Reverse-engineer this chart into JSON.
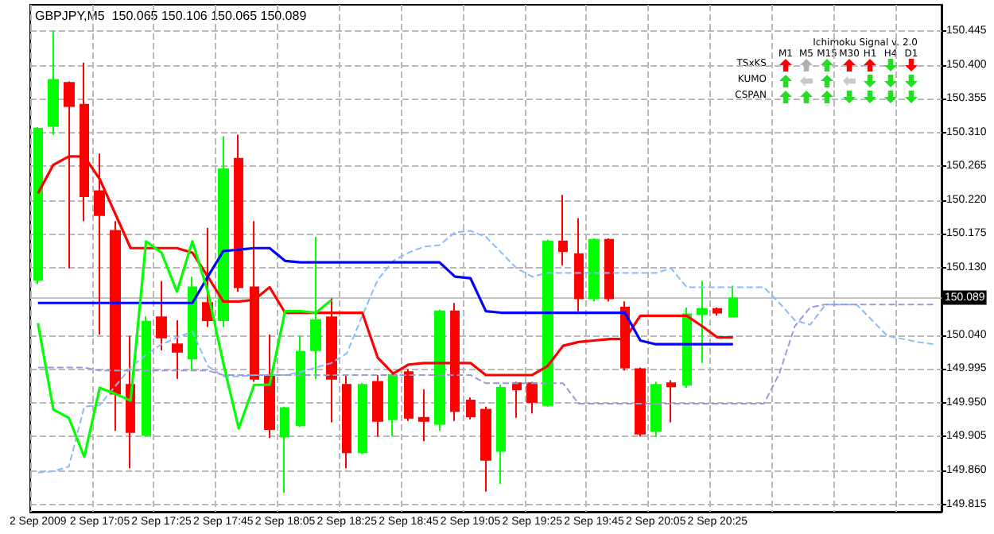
{
  "chart_data": {
    "type": "candlestick",
    "title": "GBPJPY,M5  150.065 150.106 150.065 150.089",
    "categories": [
      "2 Sep 2009",
      null,
      null,
      null,
      "2 Sep 17:05",
      null,
      null,
      null,
      "2 Sep 17:25",
      null,
      null,
      null,
      "2 Sep 17:45",
      null,
      null,
      null,
      "2 Sep 18:05",
      null,
      null,
      null,
      "2 Sep 18:25",
      null,
      null,
      null,
      "2 Sep 18:45",
      null,
      null,
      null,
      "2 Sep 19:05",
      null,
      null,
      null,
      "2 Sep 19:25",
      null,
      null,
      null,
      "2 Sep 19:45",
      null,
      null,
      null,
      "2 Sep 20:05",
      null,
      null,
      null,
      "2 Sep 20:25",
      null,
      null,
      null,
      null,
      null,
      null,
      null,
      null,
      null,
      null,
      null,
      null,
      null,
      null
    ],
    "series": [
      {
        "type": "line",
        "color": "#88bbff",
        "line_style": "dashed",
        "values": [
          149.857,
          149.859,
          149.865,
          149.945,
          149.947,
          149.972,
          149.997,
          150.014,
          150.028,
          150.037,
          150.045,
          149.999,
          149.985,
          149.985,
          149.987,
          149.987,
          149.987,
          149.991,
          149.997,
          150.003,
          150.016,
          150.066,
          150.114,
          150.139,
          150.15,
          150.158,
          150.16,
          150.177,
          150.179,
          150.171,
          150.15,
          150.129,
          150.118,
          150.123,
          150.123,
          150.123,
          150.123,
          150.123,
          150.123,
          150.123,
          150.123,
          150.129,
          150.104,
          150.104,
          150.104,
          150.104,
          150.104,
          150.104,
          150.083,
          150.06,
          150.054,
          150.081,
          150.081,
          150.081,
          150.06,
          150.039,
          150.035,
          150.031,
          150.028
        ]
      },
      {
        "type": "line",
        "color": "#9999dd",
        "line_style": "dashed",
        "values": [
          149.997,
          149.997,
          149.997,
          149.997,
          149.993,
          149.993,
          149.993,
          149.993,
          149.993,
          149.993,
          149.993,
          149.993,
          149.987,
          149.987,
          149.987,
          149.987,
          149.987,
          149.987,
          149.987,
          149.987,
          149.987,
          149.987,
          149.987,
          149.987,
          149.987,
          149.987,
          149.987,
          149.987,
          149.987,
          149.976,
          149.976,
          149.976,
          149.976,
          149.976,
          149.976,
          149.949,
          149.949,
          149.949,
          149.949,
          149.949,
          149.949,
          149.949,
          149.949,
          149.949,
          149.949,
          149.949,
          149.949,
          149.949,
          149.989,
          150.052,
          150.077,
          150.081,
          150.081,
          150.081,
          150.081,
          150.081,
          150.081,
          150.081,
          150.081
        ]
      },
      {
        "type": "line",
        "color": "#ff0000",
        "line_style": "solid",
        "values": [
          150.229,
          150.267,
          150.278,
          150.278,
          150.248,
          150.202,
          150.156,
          150.156,
          150.156,
          150.156,
          150.15,
          150.118,
          150.085,
          150.085,
          150.087,
          150.104,
          150.07,
          150.07,
          150.07,
          150.07,
          150.07,
          150.07,
          150.01,
          149.989,
          150.001,
          150.003,
          150.003,
          150.003,
          150.003,
          149.987,
          149.987,
          149.987,
          149.987,
          149.999,
          150.026,
          150.031,
          150.033,
          150.035,
          150.035,
          150.066,
          150.066,
          150.066,
          150.066,
          150.052,
          150.037,
          150.037,
          null,
          null,
          null,
          null,
          null,
          null,
          null,
          null,
          null,
          null,
          null,
          null,
          null
        ]
      },
      {
        "type": "line",
        "color": "#0000ff",
        "line_style": "solid",
        "values": [
          150.083,
          150.083,
          150.083,
          150.083,
          150.083,
          150.083,
          150.083,
          150.083,
          150.083,
          150.083,
          150.083,
          150.118,
          150.152,
          150.154,
          150.156,
          150.156,
          150.139,
          150.137,
          150.137,
          150.137,
          150.137,
          150.137,
          150.137,
          150.137,
          150.137,
          150.137,
          150.137,
          150.118,
          150.116,
          150.072,
          150.07,
          150.07,
          150.07,
          150.07,
          150.07,
          150.07,
          150.07,
          150.07,
          150.07,
          150.033,
          150.028,
          150.028,
          150.028,
          150.028,
          150.028,
          150.028,
          null,
          null,
          null,
          null,
          null,
          null,
          null,
          null,
          null,
          null,
          null,
          null,
          null
        ]
      },
      {
        "type": "line",
        "color": "#00ff00",
        "line_style": "solid",
        "values": [
          150.056,
          149.941,
          149.93,
          149.878,
          149.97,
          149.962,
          149.953,
          150.165,
          150.15,
          150.098,
          150.165,
          150.098,
          150.003,
          149.916,
          149.974,
          149.974,
          150.072,
          150.072,
          150.07,
          150.087,
          null,
          null,
          null,
          null,
          null,
          null,
          null,
          null,
          null,
          null,
          null,
          null,
          null,
          null,
          null,
          null,
          null,
          null,
          null,
          null,
          null,
          null,
          null,
          null,
          null,
          null,
          null,
          null,
          null,
          null,
          null,
          null,
          null,
          null,
          null,
          null,
          null,
          null,
          null
        ]
      },
      {
        "colors": [
          "#00ff00",
          "#00ff00",
          "#ff0000",
          "#ff0000",
          "#ff0000",
          "#ff0000",
          "#ff0000",
          "#00ff00",
          "#ff0000",
          "#ff0000",
          "#00ff00",
          "#ff0000",
          "#00ff00",
          "#ff0000",
          "#ff0000",
          "#ff0000",
          "#00ff00",
          "#00ff00",
          "#00ff00",
          "#ff0000",
          "#ff0000",
          "#00ff00",
          "#ff0000",
          "#00ff00",
          "#ff0000",
          "#ff0000",
          "#00ff00",
          "#ff0000",
          "#ff0000",
          "#ff0000",
          "#00ff00",
          "#ff0000",
          "#ff0000",
          "#00ff00",
          "#ff0000",
          "#ff0000",
          "#00ff00",
          "#ff0000",
          "#ff0000",
          "#ff0000",
          "#00ff00",
          "#ff0000",
          "#00ff00",
          "#00ff00",
          "#ff0000",
          "#00ff00",
          null,
          null,
          null,
          null,
          null,
          null,
          null,
          null,
          null,
          null,
          null,
          null,
          null
        ],
        "ohlc": [
          [
            150.114,
            150.317,
            150.108,
            150.315
          ],
          [
            150.319,
            150.445,
            150.307,
            150.38
          ],
          [
            150.376,
            150.378,
            150.129,
            150.345
          ],
          [
            150.347,
            150.403,
            150.192,
            150.225
          ],
          [
            150.232,
            150.282,
            150.041,
            150.2
          ],
          [
            150.179,
            150.192,
            149.913,
            149.962
          ],
          [
            149.974,
            150.039,
            149.863,
            149.911
          ],
          [
            149.907,
            150.065,
            149.905,
            150.058
          ],
          [
            150.064,
            150.112,
            150.02,
            150.037
          ],
          [
            150.028,
            150.06,
            149.982,
            150.018
          ],
          [
            150.009,
            150.118,
            149.993,
            150.104
          ],
          [
            150.083,
            150.183,
            150.051,
            150.06
          ],
          [
            150.06,
            150.305,
            150.051,
            150.261
          ],
          [
            150.275,
            150.307,
            150.098,
            150.104
          ],
          [
            150.104,
            150.192,
            149.978,
            149.982
          ],
          [
            149.985,
            150.041,
            149.903,
            149.915
          ],
          [
            149.905,
            149.945,
            149.83,
            149.943
          ],
          [
            149.92,
            150.039,
            149.918,
            150.018
          ],
          [
            150.02,
            150.171,
            149.982,
            150.06
          ],
          [
            150.064,
            150.089,
            149.924,
            149.982
          ],
          [
            149.974,
            149.987,
            149.863,
            149.884
          ],
          [
            149.884,
            149.976,
            149.882,
            149.974
          ],
          [
            149.978,
            149.987,
            149.905,
            149.926
          ],
          [
            149.928,
            149.99,
            149.905,
            149.987
          ],
          [
            149.991,
            149.995,
            149.926,
            149.93
          ],
          [
            149.93,
            149.968,
            149.899,
            149.926
          ],
          [
            149.922,
            150.074,
            149.913,
            150.072
          ],
          [
            150.072,
            150.083,
            149.926,
            149.939
          ],
          [
            149.953,
            149.957,
            149.928,
            149.932
          ],
          [
            149.941,
            149.945,
            149.832,
            149.874
          ],
          [
            149.886,
            149.974,
            149.842,
            149.97
          ],
          [
            149.976,
            149.978,
            149.93,
            149.968
          ],
          [
            149.976,
            149.978,
            149.936,
            149.951
          ],
          [
            149.947,
            150.167,
            149.945,
            150.165
          ],
          [
            150.165,
            150.227,
            150.133,
            150.152
          ],
          [
            150.148,
            150.196,
            150.072,
            150.089
          ],
          [
            150.089,
            150.169,
            150.085,
            150.167
          ],
          [
            150.167,
            150.169,
            150.085,
            150.089
          ],
          [
            150.077,
            150.085,
            149.993,
            149.997
          ],
          [
            149.995,
            149.997,
            149.905,
            149.909
          ],
          [
            149.913,
            149.978,
            149.905,
            149.974
          ],
          [
            149.976,
            149.98,
            149.924,
            149.972
          ],
          [
            149.974,
            150.077,
            149.97,
            150.068
          ],
          [
            150.068,
            150.112,
            150.003,
            150.075
          ],
          [
            150.075,
            150.077,
            150.066,
            150.07
          ],
          [
            150.065,
            150.106,
            150.065,
            150.089
          ],
          null,
          null,
          null,
          null,
          null,
          null,
          null,
          null,
          null,
          null,
          null,
          null,
          null
        ]
      }
    ],
    "ylim": [
      149.805,
      150.48
    ],
    "yticks": [
      149.815,
      {
        "value": 149.86,
        "label": "149.860"
      },
      149.905,
      {
        "value": 149.95,
        "label": "149.950"
      },
      149.995,
      {
        "value": 150.04,
        "label": "150.040"
      },
      {
        "value": 150.13,
        "label": "150.130"
      },
      150.175,
      {
        "value": 150.22,
        "label": "150.220"
      },
      150.265,
      {
        "value": 150.31,
        "label": "150.310"
      },
      150.355,
      {
        "value": 150.4,
        "label": "150.400"
      },
      150.445
    ],
    "ref_lines": [
      {
        "axis": "y",
        "value": 150.089,
        "label": "150.089",
        "color": "#c0c0c0"
      }
    ],
    "annotations": [
      "Ichimoku Signal v. 2.0",
      "M1",
      "M5",
      "M15",
      "M30",
      "H1",
      "H4",
      "D1",
      "TSxKS",
      "KUMO",
      "CSPAN"
    ],
    "grid": true,
    "marker": "none"
  }
}
